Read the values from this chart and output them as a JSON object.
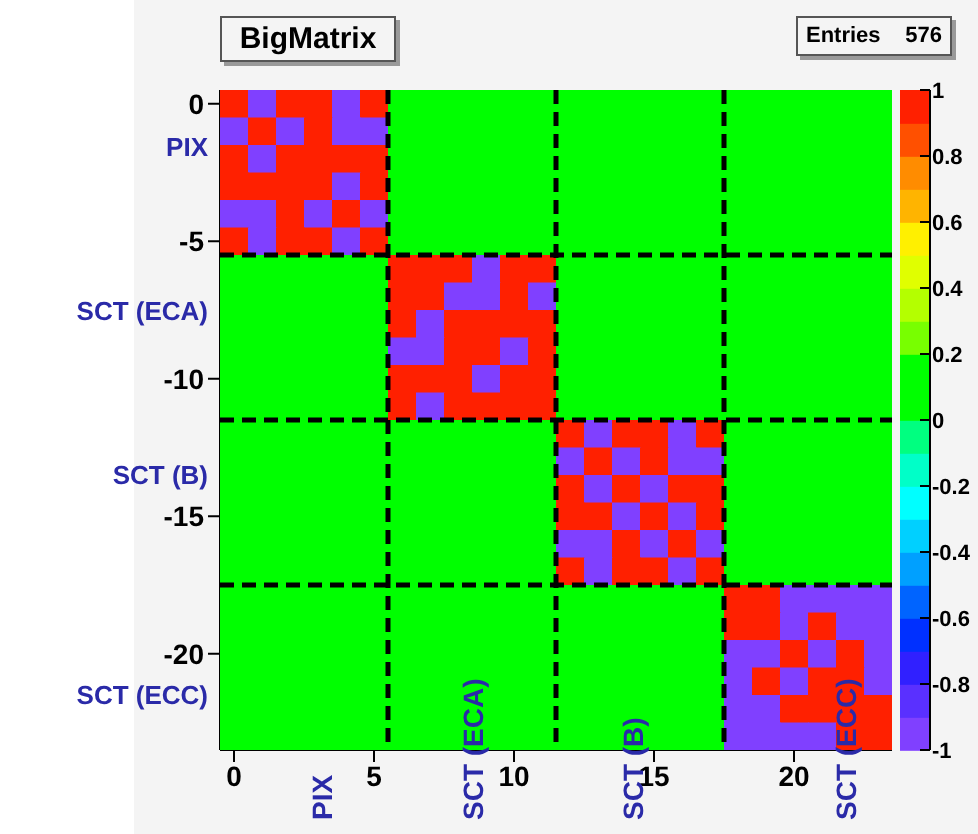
{
  "chart_data": {
    "type": "heatmap",
    "title": "BigMatrix",
    "annotations": [
      "PIX",
      "SCT (ECA)",
      "SCT (B)",
      "SCT (ECC)",
      "PIX",
      "SCT (ECA)",
      "SCT (B)",
      "SCT (ECC)",
      "Entries 576"
    ],
    "xlim": [
      -0.5,
      23.5
    ],
    "xticks": [
      0,
      5,
      10,
      15,
      20
    ],
    "ylim": [
      -23.5,
      0.5
    ],
    "yticks": [
      0,
      -5,
      -10,
      -15,
      -20
    ],
    "clim": [
      -1,
      1
    ],
    "cticks": [
      1,
      0.8,
      0.6,
      0.4,
      0.2,
      0,
      -0.2,
      -0.4,
      -0.6,
      -0.8,
      -1
    ],
    "ref_lines": [
      {
        "axis": "x",
        "value": 5.5,
        "color": "#000000",
        "line_style": "dashed"
      },
      {
        "axis": "x",
        "value": 11.5,
        "color": "#000000",
        "line_style": "dashed"
      },
      {
        "axis": "x",
        "value": 17.5,
        "color": "#000000",
        "line_style": "dashed"
      },
      {
        "axis": "y",
        "value": -5.5,
        "color": "#000000",
        "line_style": "dashed"
      },
      {
        "axis": "y",
        "value": -11.5,
        "color": "#000000",
        "line_style": "dashed"
      },
      {
        "axis": "y",
        "value": -17.5,
        "color": "#000000",
        "line_style": "dashed"
      }
    ],
    "cells": [
      [
        1,
        -1,
        1,
        1,
        -1,
        1,
        0,
        0,
        0,
        0,
        0,
        0,
        0,
        0,
        0,
        0,
        0,
        0,
        0,
        0,
        0,
        0,
        0,
        0
      ],
      [
        -1,
        1,
        -1,
        1,
        -1,
        -1,
        0,
        0,
        0,
        0,
        0,
        0,
        0,
        0,
        0,
        0,
        0,
        0,
        0,
        0,
        0,
        0,
        0,
        0
      ],
      [
        1,
        -1,
        1,
        1,
        1,
        1,
        0,
        0,
        0,
        0,
        0,
        0,
        0,
        0,
        0,
        0,
        0,
        0,
        0,
        0,
        0,
        0,
        0,
        0
      ],
      [
        1,
        1,
        1,
        1,
        -1,
        1,
        0,
        0,
        0,
        0,
        0,
        0,
        0,
        0,
        0,
        0,
        0,
        0,
        0,
        0,
        0,
        0,
        0,
        0
      ],
      [
        -1,
        -1,
        1,
        -1,
        1,
        -1,
        0,
        0,
        0,
        0,
        0,
        0,
        0,
        0,
        0,
        0,
        0,
        0,
        0,
        0,
        0,
        0,
        0,
        0
      ],
      [
        1,
        -1,
        1,
        1,
        -1,
        1,
        0,
        0,
        0,
        0,
        0,
        0,
        0,
        0,
        0,
        0,
        0,
        0,
        0,
        0,
        0,
        0,
        0,
        0
      ],
      [
        0,
        0,
        0,
        0,
        0,
        0,
        1,
        1,
        1,
        -1,
        1,
        1,
        0,
        0,
        0,
        0,
        0,
        0,
        0,
        0,
        0,
        0,
        0,
        0
      ],
      [
        0,
        0,
        0,
        0,
        0,
        0,
        1,
        1,
        -1,
        -1,
        1,
        -1,
        0,
        0,
        0,
        0,
        0,
        0,
        0,
        0,
        0,
        0,
        0,
        0
      ],
      [
        0,
        0,
        0,
        0,
        0,
        0,
        1,
        -1,
        1,
        1,
        1,
        1,
        0,
        0,
        0,
        0,
        0,
        0,
        0,
        0,
        0,
        0,
        0,
        0
      ],
      [
        0,
        0,
        0,
        0,
        0,
        0,
        -1,
        -1,
        1,
        1,
        -1,
        1,
        0,
        0,
        0,
        0,
        0,
        0,
        0,
        0,
        0,
        0,
        0,
        0
      ],
      [
        0,
        0,
        0,
        0,
        0,
        0,
        1,
        1,
        1,
        -1,
        1,
        1,
        0,
        0,
        0,
        0,
        0,
        0,
        0,
        0,
        0,
        0,
        0,
        0
      ],
      [
        0,
        0,
        0,
        0,
        0,
        0,
        1,
        -1,
        1,
        1,
        1,
        1,
        0,
        0,
        0,
        0,
        0,
        0,
        0,
        0,
        0,
        0,
        0,
        0
      ],
      [
        0,
        0,
        0,
        0,
        0,
        0,
        0,
        0,
        0,
        0,
        0,
        0,
        1,
        -1,
        1,
        1,
        -1,
        1,
        0,
        0,
        0,
        0,
        0,
        0
      ],
      [
        0,
        0,
        0,
        0,
        0,
        0,
        0,
        0,
        0,
        0,
        0,
        0,
        -1,
        1,
        -1,
        1,
        -1,
        -1,
        0,
        0,
        0,
        0,
        0,
        0
      ],
      [
        0,
        0,
        0,
        0,
        0,
        0,
        0,
        0,
        0,
        0,
        0,
        0,
        1,
        -1,
        1,
        -1,
        1,
        1,
        0,
        0,
        0,
        0,
        0,
        0
      ],
      [
        0,
        0,
        0,
        0,
        0,
        0,
        0,
        0,
        0,
        0,
        0,
        0,
        1,
        1,
        -1,
        1,
        -1,
        1,
        0,
        0,
        0,
        0,
        0,
        0
      ],
      [
        0,
        0,
        0,
        0,
        0,
        0,
        0,
        0,
        0,
        0,
        0,
        0,
        -1,
        -1,
        1,
        -1,
        1,
        -1,
        0,
        0,
        0,
        0,
        0,
        0
      ],
      [
        0,
        0,
        0,
        0,
        0,
        0,
        0,
        0,
        0,
        0,
        0,
        0,
        1,
        -1,
        1,
        1,
        -1,
        1,
        0,
        0,
        0,
        0,
        0,
        0
      ],
      [
        0,
        0,
        0,
        0,
        0,
        0,
        0,
        0,
        0,
        0,
        0,
        0,
        0,
        0,
        0,
        0,
        0,
        0,
        1,
        1,
        -1,
        -1,
        -1,
        -1
      ],
      [
        0,
        0,
        0,
        0,
        0,
        0,
        0,
        0,
        0,
        0,
        0,
        0,
        0,
        0,
        0,
        0,
        0,
        0,
        1,
        1,
        -1,
        1,
        -1,
        -1
      ],
      [
        0,
        0,
        0,
        0,
        0,
        0,
        0,
        0,
        0,
        0,
        0,
        0,
        0,
        0,
        0,
        0,
        0,
        0,
        -1,
        -1,
        1,
        -1,
        1,
        -1
      ],
      [
        0,
        0,
        0,
        0,
        0,
        0,
        0,
        0,
        0,
        0,
        0,
        0,
        0,
        0,
        0,
        0,
        0,
        0,
        -1,
        1,
        -1,
        1,
        1,
        -1
      ],
      [
        0,
        0,
        0,
        0,
        0,
        0,
        0,
        0,
        0,
        0,
        0,
        0,
        0,
        0,
        0,
        0,
        0,
        0,
        -1,
        -1,
        1,
        1,
        1,
        1
      ],
      [
        0,
        0,
        0,
        0,
        0,
        0,
        0,
        0,
        0,
        0,
        0,
        0,
        0,
        0,
        0,
        0,
        0,
        0,
        -1,
        -1,
        -1,
        -1,
        1,
        1
      ]
    ]
  }
}
